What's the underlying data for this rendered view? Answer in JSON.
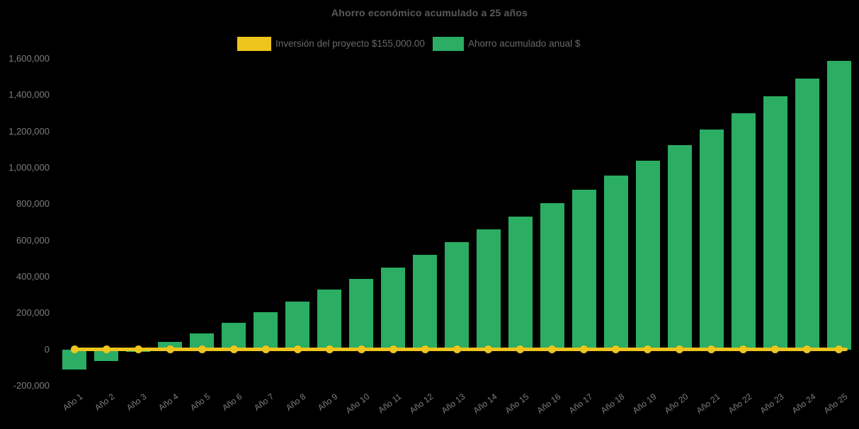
{
  "title": "Ahorro económico acumulado a 25 años",
  "legend": [
    {
      "label": "Inversión del proyecto $155,000.00",
      "color": "#EEC51C"
    },
    {
      "label": "Ahorro acumulado anual $",
      "color": "#2BAD63"
    }
  ],
  "colors": {
    "background": "#000000",
    "bar_green": "#2BAD63",
    "line_yellow": "#EEC51C",
    "title_text": "#5a5a5a",
    "axis_text": "#7d7d7d"
  },
  "chart_data": {
    "type": "bar",
    "title": "Ahorro económico acumulado a 25 años",
    "categories": [
      "Año 1",
      "Año 2",
      "Año 3",
      "Año 4",
      "Año 5",
      "Año 6",
      "Año 7",
      "Año 8",
      "Año 9",
      "Año 10",
      "Año 11",
      "Año 12",
      "Año 13",
      "Año 14",
      "Año 15",
      "Año 16",
      "Año 17",
      "Año 18",
      "Año 19",
      "Año 20",
      "Año 21",
      "Año 22",
      "Año 23",
      "Año 24",
      "Año 25"
    ],
    "series": [
      {
        "name": "Ahorro acumulado anual $",
        "type": "bar",
        "color": "#2BAD63",
        "values": [
          -110000,
          -65000,
          -12000,
          40000,
          90000,
          148000,
          205000,
          264000,
          328000,
          390000,
          450000,
          520000,
          590000,
          660000,
          732000,
          805000,
          881000,
          958000,
          1038000,
          1126000,
          1210000,
          1300000,
          1392000,
          1490000,
          1588000
        ]
      },
      {
        "name": "Inversión del proyecto $155,000.00",
        "type": "line",
        "color": "#EEC51C",
        "marker": "circle",
        "values": [
          0,
          0,
          0,
          0,
          0,
          0,
          0,
          0,
          0,
          0,
          0,
          0,
          0,
          0,
          0,
          0,
          0,
          0,
          0,
          0,
          0,
          0,
          0,
          0,
          0
        ]
      }
    ],
    "xlabel": "",
    "ylabel": "",
    "ylim": [
      -200000,
      1600000
    ],
    "yticks": [
      -200000,
      0,
      200000,
      400000,
      600000,
      800000,
      1000000,
      1200000,
      1400000,
      1600000
    ],
    "ytick_labels": [
      "-200,000",
      "0",
      "200,000",
      "400,000",
      "600,000",
      "800,000",
      "1,000,000",
      "1,200,000",
      "1,400,000",
      "1,600,000"
    ],
    "grid": false,
    "legend_position": "top"
  }
}
